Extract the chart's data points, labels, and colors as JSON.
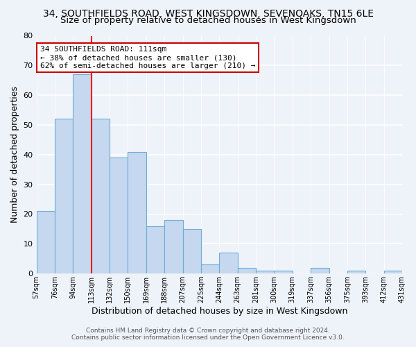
{
  "title": "34, SOUTHFIELDS ROAD, WEST KINGSDOWN, SEVENOAKS, TN15 6LE",
  "subtitle": "Size of property relative to detached houses in West Kingsdown",
  "xlabel": "Distribution of detached houses by size in West Kingsdown",
  "ylabel": "Number of detached properties",
  "bar_values": [
    21,
    52,
    67,
    52,
    39,
    41,
    16,
    18,
    15,
    3,
    7,
    2,
    1,
    1,
    0,
    2,
    0,
    1,
    0,
    1
  ],
  "bin_labels": [
    "57sqm",
    "76sqm",
    "94sqm",
    "113sqm",
    "132sqm",
    "150sqm",
    "169sqm",
    "188sqm",
    "207sqm",
    "225sqm",
    "244sqm",
    "263sqm",
    "281sqm",
    "300sqm",
    "319sqm",
    "337sqm",
    "356sqm",
    "375sqm",
    "393sqm",
    "412sqm",
    "431sqm"
  ],
  "bar_color": "#c5d8ef",
  "bar_edge_color": "#6baed6",
  "vline_x_idx": 3,
  "vline_color": "red",
  "annotation_text": "34 SOUTHFIELDS ROAD: 111sqm\n← 38% of detached houses are smaller (130)\n62% of semi-detached houses are larger (210) →",
  "annotation_box_color": "white",
  "annotation_box_edge": "#cc0000",
  "ylim": [
    0,
    80
  ],
  "yticks": [
    0,
    10,
    20,
    30,
    40,
    50,
    60,
    70,
    80
  ],
  "footer_line1": "Contains HM Land Registry data © Crown copyright and database right 2024.",
  "footer_line2": "Contains public sector information licensed under the Open Government Licence v3.0.",
  "background_color": "#eef2f9",
  "grid_color": "#d0d8e8",
  "title_fontsize": 10,
  "subtitle_fontsize": 9.5
}
